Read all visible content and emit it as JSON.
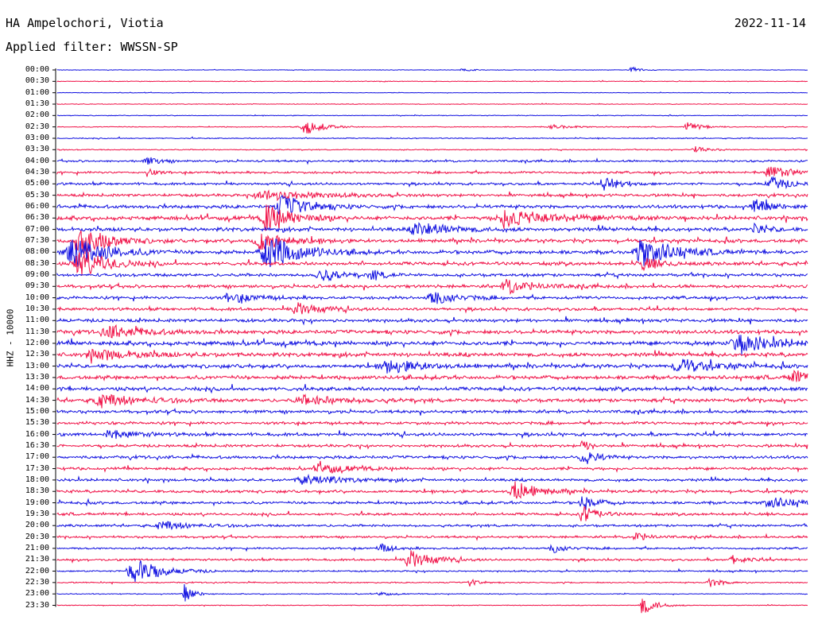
{
  "header": {
    "station": "HA Ampelochori, Viotia",
    "date": "2022-11-14",
    "filter": "Applied filter: WWSSN-SP"
  },
  "colors": {
    "blue": "#1010e0",
    "red": "#f01046"
  },
  "chart_data": {
    "type": "line",
    "title": "HA Ampelochori, Viotia",
    "ylabel": "HHZ - 10000",
    "xlabel": "",
    "rows": [
      "00:00",
      "00:30",
      "01:00",
      "01:30",
      "02:00",
      "02:30",
      "03:00",
      "03:30",
      "04:00",
      "04:30",
      "05:00",
      "05:30",
      "06:00",
      "06:30",
      "07:00",
      "07:30",
      "08:00",
      "08:30",
      "09:00",
      "09:30",
      "10:00",
      "10:30",
      "11:00",
      "11:30",
      "12:00",
      "12:30",
      "13:00",
      "13:30",
      "14:00",
      "14:30",
      "15:00",
      "15:30",
      "16:00",
      "16:30",
      "17:00",
      "17:30",
      "18:00",
      "18:30",
      "19:00",
      "19:30",
      "20:00",
      "20:30",
      "21:00",
      "21:30",
      "22:00",
      "22:30",
      "23:00",
      "23:30"
    ],
    "row_colors": "alternating blue / red",
    "noise_level": [
      0.3,
      0.4,
      0.3,
      0.4,
      0.4,
      0.5,
      0.6,
      0.6,
      1.2,
      1.3,
      1.4,
      1.6,
      2.0,
      2.2,
      2.2,
      2.0,
      2.2,
      2.0,
      1.8,
      1.9,
      1.8,
      1.7,
      1.9,
      2.2,
      2.4,
      2.3,
      2.2,
      2.2,
      2.2,
      2.1,
      1.8,
      1.7,
      1.8,
      1.6,
      1.7,
      1.6,
      1.6,
      1.6,
      1.6,
      1.5,
      1.4,
      1.3,
      1.2,
      1.2,
      0.9,
      0.7,
      0.5,
      0.4
    ],
    "events": [
      {
        "row": "00:00",
        "t": 0.765,
        "amp": 4,
        "dur": 0.01
      },
      {
        "row": "00:00",
        "t": 0.54,
        "amp": 2,
        "dur": 0.01
      },
      {
        "row": "02:30",
        "t": 0.33,
        "amp": 10,
        "dur": 0.02
      },
      {
        "row": "02:30",
        "t": 0.84,
        "amp": 6,
        "dur": 0.015
      },
      {
        "row": "02:30",
        "t": 0.66,
        "amp": 3,
        "dur": 0.02
      },
      {
        "row": "03:30",
        "t": 0.85,
        "amp": 4,
        "dur": 0.015
      },
      {
        "row": "04:00",
        "t": 0.12,
        "amp": 5,
        "dur": 0.015
      },
      {
        "row": "04:30",
        "t": 0.12,
        "amp": 5,
        "dur": 0.01
      },
      {
        "row": "04:30",
        "t": 0.95,
        "amp": 8,
        "dur": 0.025
      },
      {
        "row": "05:00",
        "t": 0.73,
        "amp": 8,
        "dur": 0.02
      },
      {
        "row": "05:00",
        "t": 0.95,
        "amp": 9,
        "dur": 0.02
      },
      {
        "row": "05:30",
        "t": 0.28,
        "amp": 6,
        "dur": 0.06
      },
      {
        "row": "06:00",
        "t": 0.3,
        "amp": 14,
        "dur": 0.03
      },
      {
        "row": "06:00",
        "t": 0.93,
        "amp": 8,
        "dur": 0.02
      },
      {
        "row": "06:30",
        "t": 0.6,
        "amp": 10,
        "dur": 0.06
      },
      {
        "row": "06:30",
        "t": 0.28,
        "amp": 16,
        "dur": 0.03
      },
      {
        "row": "07:00",
        "t": 0.48,
        "amp": 9,
        "dur": 0.035
      },
      {
        "row": "07:00",
        "t": 0.93,
        "amp": 6,
        "dur": 0.015
      },
      {
        "row": "07:30",
        "t": 0.03,
        "amp": 20,
        "dur": 0.03
      },
      {
        "row": "07:30",
        "t": 0.27,
        "amp": 12,
        "dur": 0.03
      },
      {
        "row": "08:00",
        "t": 0.02,
        "amp": 22,
        "dur": 0.035
      },
      {
        "row": "08:00",
        "t": 0.28,
        "amp": 22,
        "dur": 0.035
      },
      {
        "row": "08:00",
        "t": 0.78,
        "amp": 18,
        "dur": 0.035
      },
      {
        "row": "08:30",
        "t": 0.03,
        "amp": 18,
        "dur": 0.03
      },
      {
        "row": "08:30",
        "t": 0.78,
        "amp": 8,
        "dur": 0.02
      },
      {
        "row": "09:00",
        "t": 0.35,
        "amp": 9,
        "dur": 0.02
      },
      {
        "row": "09:00",
        "t": 0.42,
        "amp": 6,
        "dur": 0.015
      },
      {
        "row": "09:30",
        "t": 0.6,
        "amp": 8,
        "dur": 0.03
      },
      {
        "row": "10:00",
        "t": 0.5,
        "amp": 9,
        "dur": 0.025
      },
      {
        "row": "10:00",
        "t": 0.23,
        "amp": 6,
        "dur": 0.03
      },
      {
        "row": "10:30",
        "t": 0.32,
        "amp": 8,
        "dur": 0.025
      },
      {
        "row": "11:30",
        "t": 0.07,
        "amp": 7,
        "dur": 0.04
      },
      {
        "row": "12:00",
        "t": 0.91,
        "amp": 10,
        "dur": 0.05
      },
      {
        "row": "12:30",
        "t": 0.05,
        "amp": 6,
        "dur": 0.05
      },
      {
        "row": "13:00",
        "t": 0.44,
        "amp": 8,
        "dur": 0.035
      },
      {
        "row": "13:00",
        "t": 0.83,
        "amp": 9,
        "dur": 0.035
      },
      {
        "row": "13:30",
        "t": 0.98,
        "amp": 9,
        "dur": 0.02
      },
      {
        "row": "14:30",
        "t": 0.06,
        "amp": 8,
        "dur": 0.04
      },
      {
        "row": "14:30",
        "t": 0.33,
        "amp": 5,
        "dur": 0.05
      },
      {
        "row": "16:00",
        "t": 0.07,
        "amp": 5,
        "dur": 0.03
      },
      {
        "row": "16:30",
        "t": 0.7,
        "amp": 7,
        "dur": 0.01
      },
      {
        "row": "17:00",
        "t": 0.7,
        "amp": 12,
        "dur": 0.015
      },
      {
        "row": "17:30",
        "t": 0.35,
        "amp": 6,
        "dur": 0.03
      },
      {
        "row": "18:00",
        "t": 0.33,
        "amp": 6,
        "dur": 0.04
      },
      {
        "row": "18:30",
        "t": 0.61,
        "amp": 12,
        "dur": 0.025
      },
      {
        "row": "19:00",
        "t": 0.7,
        "amp": 10,
        "dur": 0.015
      },
      {
        "row": "19:00",
        "t": 0.95,
        "amp": 6,
        "dur": 0.04
      },
      {
        "row": "19:30",
        "t": 0.7,
        "amp": 12,
        "dur": 0.015
      },
      {
        "row": "20:00",
        "t": 0.14,
        "amp": 6,
        "dur": 0.03
      },
      {
        "row": "20:30",
        "t": 0.77,
        "amp": 6,
        "dur": 0.015
      },
      {
        "row": "21:00",
        "t": 0.43,
        "amp": 6,
        "dur": 0.015
      },
      {
        "row": "21:00",
        "t": 0.66,
        "amp": 6,
        "dur": 0.015
      },
      {
        "row": "21:30",
        "t": 0.47,
        "amp": 12,
        "dur": 0.025
      },
      {
        "row": "21:30",
        "t": 0.9,
        "amp": 6,
        "dur": 0.015
      },
      {
        "row": "22:00",
        "t": 0.1,
        "amp": 18,
        "dur": 0.03
      },
      {
        "row": "22:30",
        "t": 0.87,
        "amp": 6,
        "dur": 0.015
      },
      {
        "row": "22:30",
        "t": 0.55,
        "amp": 5,
        "dur": 0.01
      },
      {
        "row": "23:00",
        "t": 0.17,
        "amp": 12,
        "dur": 0.01
      },
      {
        "row": "23:00",
        "t": 0.43,
        "amp": 3,
        "dur": 0.01
      },
      {
        "row": "23:30",
        "t": 0.78,
        "amp": 12,
        "dur": 0.015
      }
    ]
  }
}
